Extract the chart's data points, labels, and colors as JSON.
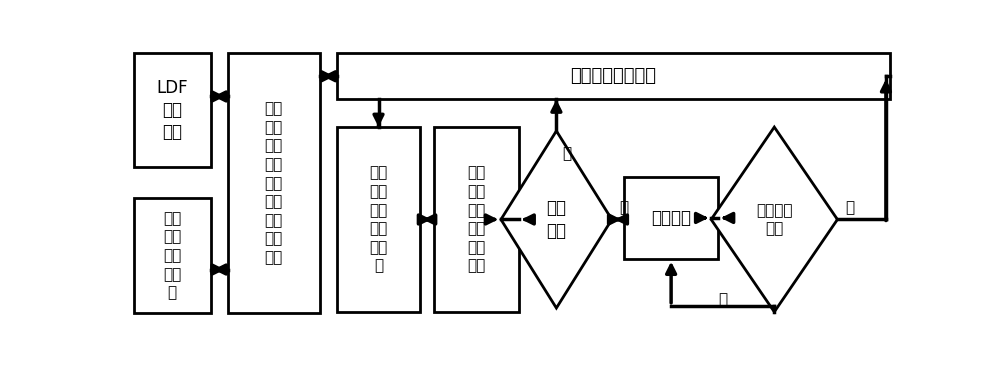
{
  "bg": "#ffffff",
  "lc": "#000000",
  "ldf_text": "LDF\n成形\n平台",
  "ir_text": "红外\n热成\n像检\n测系\n统",
  "system_text": "材质\n缺陷\n红外\n热成\n像检\n测及\n靶向\n消除\n系统",
  "layers_text": "每制\n作完\n固定\n间隔\n的层\n数",
  "detect_text": "表面\n及近\n表面\n缺陷\n在线\n检测",
  "found_text": "发现\n缺陷",
  "elim_text": "靶向消除",
  "check_text": "靶向复检\n合格",
  "process_text": "激光金属成形过程",
  "yes": "是",
  "no": "否"
}
